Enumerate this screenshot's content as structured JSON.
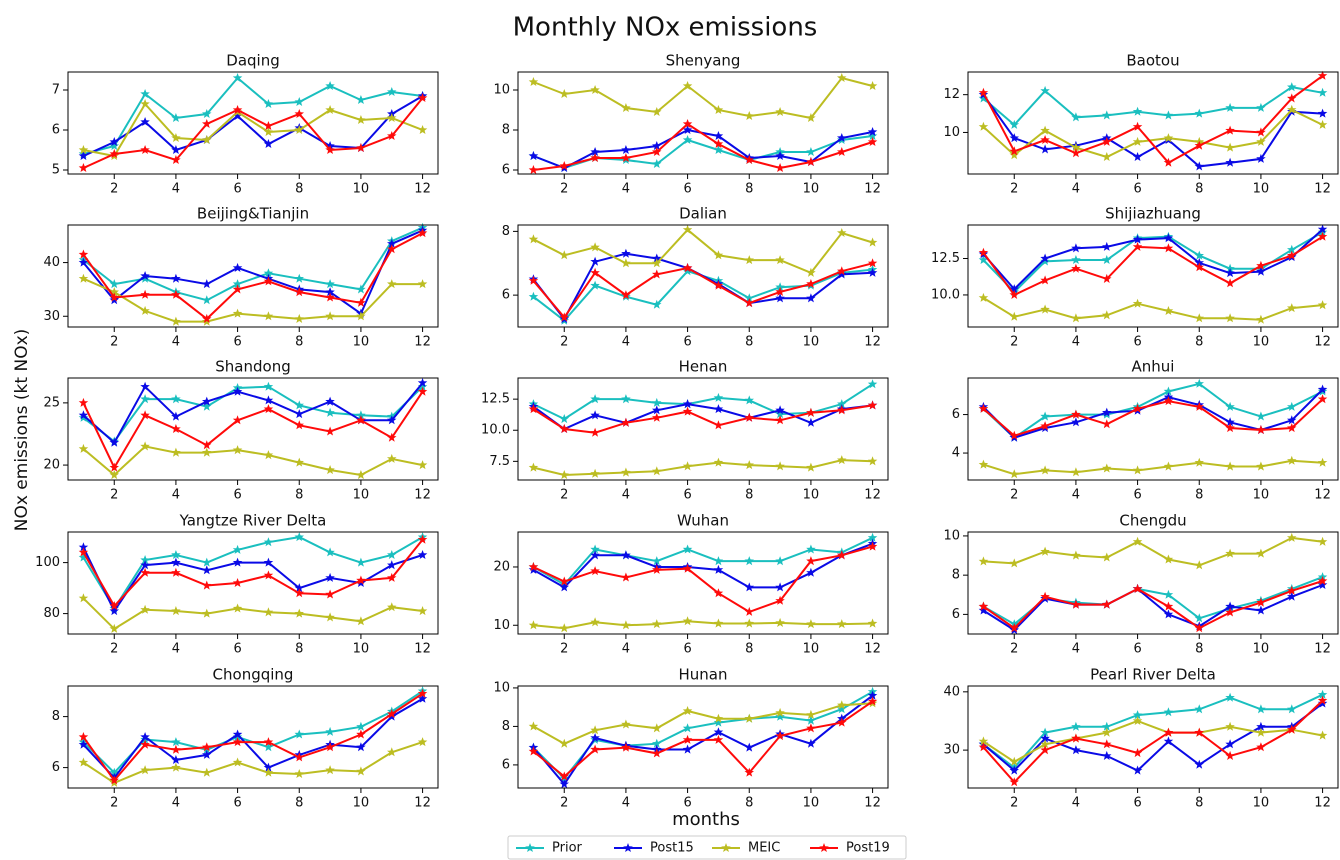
{
  "title": "Monthly NOx emissions",
  "xlabel": "months",
  "ylabel": "NOx emissions (kt NOx)",
  "x": [
    1,
    2,
    3,
    4,
    5,
    6,
    7,
    8,
    9,
    10,
    11,
    12
  ],
  "xlim": [
    0.5,
    12.5
  ],
  "xticks": [
    2,
    4,
    6,
    8,
    10,
    12
  ],
  "legend": [
    {
      "name": "Prior",
      "color": "#1abfbf"
    },
    {
      "name": "Post15",
      "color": "#0a0ae6"
    },
    {
      "name": "MEIC",
      "color": "#bcbd22"
    },
    {
      "name": "Post19",
      "color": "#ff0a0a"
    }
  ],
  "chart_data": [
    {
      "type": "line",
      "title": "Daqing",
      "ylim": [
        4.9,
        7.45
      ],
      "yticks": [
        5,
        6,
        7
      ],
      "series": [
        {
          "values": [
            5.4,
            5.6,
            6.9,
            6.3,
            6.4,
            7.3,
            6.65,
            6.7,
            7.1,
            6.75,
            6.95,
            6.85
          ]
        },
        {
          "values": [
            5.35,
            5.7,
            6.2,
            5.5,
            5.75,
            6.35,
            5.65,
            6.05,
            5.6,
            5.55,
            6.4,
            6.85
          ]
        },
        {
          "values": [
            5.5,
            5.35,
            6.65,
            5.8,
            5.75,
            6.45,
            5.95,
            6.0,
            6.5,
            6.25,
            6.3,
            6.0
          ]
        },
        {
          "values": [
            5.05,
            5.4,
            5.5,
            5.25,
            6.15,
            6.5,
            6.1,
            6.4,
            5.5,
            5.55,
            5.85,
            6.8
          ]
        }
      ]
    },
    {
      "type": "line",
      "title": "Shenyang",
      "ylim": [
        5.8,
        10.9
      ],
      "yticks": [
        6,
        8,
        10
      ],
      "series": [
        {
          "values": [
            6.7,
            6.1,
            6.6,
            6.5,
            6.3,
            7.5,
            7.0,
            6.5,
            6.9,
            6.9,
            7.5,
            7.7
          ]
        },
        {
          "values": [
            6.7,
            6.1,
            6.9,
            7.0,
            7.2,
            8.0,
            7.7,
            6.6,
            6.7,
            6.4,
            7.6,
            7.9
          ]
        },
        {
          "values": [
            10.4,
            9.8,
            10.0,
            9.1,
            8.9,
            10.2,
            9.0,
            8.7,
            8.9,
            8.6,
            10.6,
            10.2
          ]
        },
        {
          "values": [
            6.0,
            6.2,
            6.6,
            6.6,
            6.9,
            8.3,
            7.3,
            6.5,
            6.1,
            6.4,
            6.9,
            7.4
          ]
        }
      ]
    },
    {
      "type": "line",
      "title": "Baotou",
      "ylim": [
        7.8,
        13.2
      ],
      "yticks": [
        10,
        12
      ],
      "series": [
        {
          "values": [
            11.8,
            10.4,
            12.2,
            10.8,
            10.9,
            11.1,
            10.9,
            11.0,
            11.3,
            11.3,
            12.4,
            12.1
          ]
        },
        {
          "values": [
            12.0,
            9.7,
            9.1,
            9.3,
            9.7,
            8.7,
            9.6,
            8.2,
            8.4,
            8.6,
            11.1,
            11.0
          ]
        },
        {
          "values": [
            10.3,
            8.8,
            10.1,
            9.2,
            8.7,
            9.5,
            9.7,
            9.5,
            9.2,
            9.5,
            11.2,
            10.4
          ]
        },
        {
          "values": [
            12.1,
            9.0,
            9.6,
            8.9,
            9.5,
            10.3,
            8.4,
            9.3,
            10.1,
            10.0,
            11.8,
            13.0
          ]
        }
      ]
    },
    {
      "type": "line",
      "title": "Beijing&Tianjin",
      "ylim": [
        28,
        47
      ],
      "yticks": [
        30,
        40
      ],
      "series": [
        {
          "values": [
            40.5,
            36,
            37,
            34.5,
            33,
            36,
            38,
            37,
            36,
            35,
            44,
            46.5
          ]
        },
        {
          "values": [
            40,
            33,
            37.5,
            37,
            36,
            39,
            37,
            35,
            34.5,
            30.5,
            43.5,
            46
          ]
        },
        {
          "values": [
            37,
            34.5,
            31,
            29,
            29,
            30.5,
            30,
            29.5,
            30,
            30,
            36,
            36
          ]
        },
        {
          "values": [
            41.5,
            33.5,
            34,
            34,
            29.5,
            35,
            36.5,
            34.5,
            33.5,
            32.5,
            42.5,
            45.5
          ]
        }
      ]
    },
    {
      "type": "line",
      "title": "Dalian",
      "ylim": [
        5.0,
        8.2
      ],
      "yticks": [
        6,
        8
      ],
      "series": [
        {
          "values": [
            5.95,
            5.2,
            6.3,
            5.95,
            5.7,
            6.75,
            6.45,
            5.9,
            6.25,
            6.3,
            6.7,
            6.8
          ]
        },
        {
          "values": [
            6.5,
            5.25,
            7.05,
            7.3,
            7.15,
            6.85,
            6.35,
            5.75,
            5.9,
            5.9,
            6.65,
            6.7
          ]
        },
        {
          "values": [
            7.75,
            7.25,
            7.5,
            7.0,
            7.0,
            8.05,
            7.25,
            7.1,
            7.1,
            6.7,
            7.95,
            7.65
          ]
        },
        {
          "values": [
            6.45,
            5.3,
            6.7,
            6.0,
            6.65,
            6.85,
            6.3,
            5.75,
            6.1,
            6.35,
            6.75,
            7.0
          ]
        }
      ]
    },
    {
      "type": "line",
      "title": "Shijiazhuang",
      "ylim": [
        7.8,
        14.8
      ],
      "yticks": [
        {
          "value": 10,
          "label": "10.0"
        },
        {
          "value": 12.5,
          "label": "12.5"
        }
      ],
      "series": [
        {
          "values": [
            12.4,
            10.2,
            12.3,
            12.4,
            12.4,
            13.9,
            14.0,
            12.7,
            11.8,
            11.8,
            13.1,
            14.3
          ]
        },
        {
          "values": [
            12.8,
            10.4,
            12.5,
            13.2,
            13.3,
            13.8,
            13.9,
            12.2,
            11.5,
            11.6,
            12.6,
            14.5
          ]
        },
        {
          "values": [
            9.8,
            8.5,
            9.0,
            8.4,
            8.6,
            9.4,
            8.9,
            8.4,
            8.4,
            8.3,
            9.1,
            9.3
          ]
        },
        {
          "values": [
            12.9,
            10.0,
            11.0,
            11.8,
            11.1,
            13.3,
            13.2,
            11.9,
            10.8,
            12.0,
            12.7,
            14.0
          ]
        }
      ]
    },
    {
      "type": "line",
      "title": "Shandong",
      "ylim": [
        18.8,
        27
      ],
      "yticks": [
        20,
        25
      ],
      "series": [
        {
          "values": [
            23.8,
            21.9,
            25.3,
            25.3,
            24.7,
            26.2,
            26.3,
            24.8,
            24.2,
            24.0,
            23.9,
            26.3
          ]
        },
        {
          "values": [
            24.0,
            21.8,
            26.3,
            23.9,
            25.1,
            25.9,
            25.2,
            24.1,
            25.1,
            23.6,
            23.6,
            26.6
          ]
        },
        {
          "values": [
            21.3,
            19.2,
            21.5,
            21.0,
            21.0,
            21.2,
            20.8,
            20.2,
            19.6,
            19.2,
            20.5,
            20.0
          ]
        },
        {
          "values": [
            25.0,
            19.8,
            24.0,
            22.9,
            21.6,
            23.6,
            24.5,
            23.2,
            22.7,
            23.6,
            22.2,
            25.9
          ]
        }
      ]
    },
    {
      "type": "line",
      "title": "Henan",
      "ylim": [
        6.0,
        14.2
      ],
      "yticks": [
        7.5,
        {
          "value": 10,
          "label": "10.0"
        },
        12.5
      ],
      "series": [
        {
          "values": [
            12.1,
            10.9,
            12.5,
            12.5,
            12.2,
            12.1,
            12.6,
            12.4,
            11.3,
            11.4,
            12.1,
            13.7
          ]
        },
        {
          "values": [
            11.9,
            10.1,
            11.2,
            10.6,
            11.6,
            12.1,
            11.7,
            11.0,
            11.6,
            10.6,
            11.7,
            12.0
          ]
        },
        {
          "values": [
            7.0,
            6.4,
            6.5,
            6.6,
            6.7,
            7.1,
            7.4,
            7.2,
            7.1,
            7.0,
            7.6,
            7.5
          ]
        },
        {
          "values": [
            11.7,
            10.1,
            9.8,
            10.6,
            11.0,
            11.5,
            10.4,
            11.0,
            10.8,
            11.4,
            11.6,
            12.0
          ]
        }
      ]
    },
    {
      "type": "line",
      "title": "Anhui",
      "ylim": [
        2.6,
        7.9
      ],
      "yticks": [
        4,
        6
      ],
      "series": [
        {
          "values": [
            6.3,
            4.8,
            5.9,
            6.0,
            6.0,
            6.4,
            7.2,
            7.6,
            6.4,
            5.9,
            6.4,
            7.2
          ]
        },
        {
          "values": [
            6.4,
            4.8,
            5.3,
            5.6,
            6.1,
            6.2,
            6.9,
            6.5,
            5.6,
            5.2,
            5.7,
            7.3
          ]
        },
        {
          "values": [
            3.4,
            2.9,
            3.1,
            3.0,
            3.2,
            3.1,
            3.3,
            3.5,
            3.3,
            3.3,
            3.6,
            3.5
          ]
        },
        {
          "values": [
            6.3,
            4.9,
            5.4,
            6.0,
            5.5,
            6.3,
            6.7,
            6.4,
            5.3,
            5.2,
            5.3,
            6.8
          ]
        }
      ]
    },
    {
      "type": "line",
      "title": "Yangtze River Delta",
      "ylim": [
        72,
        112
      ],
      "yticks": [
        80,
        100
      ],
      "series": [
        {
          "values": [
            102,
            82,
            101,
            103,
            100,
            105,
            108,
            110,
            104,
            100,
            103,
            110
          ]
        },
        {
          "values": [
            106,
            81,
            99,
            100,
            97,
            100,
            100,
            90,
            94,
            92,
            99,
            103
          ]
        },
        {
          "values": [
            86,
            74,
            81.5,
            81,
            80,
            82,
            80.5,
            80,
            78.5,
            77,
            82.5,
            81
          ]
        },
        {
          "values": [
            104,
            83,
            96,
            96,
            91,
            92,
            95,
            88,
            87.5,
            93,
            94,
            109
          ]
        }
      ]
    },
    {
      "type": "line",
      "title": "Wuhan",
      "ylim": [
        8.5,
        26
      ],
      "yticks": [
        10,
        20
      ],
      "series": [
        {
          "values": [
            20,
            17,
            23,
            22,
            21,
            23,
            21,
            21,
            21,
            23,
            22.5,
            25
          ]
        },
        {
          "values": [
            19.5,
            16.5,
            22,
            22,
            20,
            20,
            19.5,
            16.5,
            16.5,
            19,
            22,
            24
          ]
        },
        {
          "values": [
            10,
            9.5,
            10.5,
            10,
            10.2,
            10.7,
            10.3,
            10.3,
            10.4,
            10.2,
            10.2,
            10.3
          ]
        },
        {
          "values": [
            20,
            17.5,
            19.3,
            18.2,
            19.5,
            19.7,
            15.5,
            12.3,
            14.2,
            21,
            22,
            23.5
          ]
        }
      ]
    },
    {
      "type": "line",
      "title": "Chengdu",
      "ylim": [
        5,
        10.2
      ],
      "yticks": [
        6,
        8,
        10
      ],
      "series": [
        {
          "values": [
            6.4,
            5.5,
            6.8,
            6.6,
            6.5,
            7.3,
            7.0,
            5.8,
            6.3,
            6.7,
            7.3,
            7.9
          ]
        },
        {
          "values": [
            6.2,
            5.2,
            6.8,
            6.5,
            6.5,
            7.3,
            6.0,
            5.4,
            6.4,
            6.2,
            6.9,
            7.5
          ]
        },
        {
          "values": [
            8.7,
            8.6,
            9.2,
            9.0,
            8.9,
            9.7,
            8.8,
            8.5,
            9.1,
            9.1,
            9.9,
            9.7
          ]
        },
        {
          "values": [
            6.4,
            5.3,
            6.9,
            6.5,
            6.5,
            7.3,
            6.4,
            5.3,
            6.1,
            6.6,
            7.2,
            7.7
          ]
        }
      ]
    },
    {
      "type": "line",
      "title": "Chongqing",
      "ylim": [
        5.2,
        9.2
      ],
      "yticks": [
        6,
        8
      ],
      "series": [
        {
          "values": [
            7.0,
            5.8,
            7.1,
            7.0,
            6.7,
            7.2,
            6.8,
            7.3,
            7.4,
            7.6,
            8.2,
            9.0
          ]
        },
        {
          "values": [
            6.9,
            5.6,
            7.2,
            6.3,
            6.5,
            7.3,
            6.0,
            6.5,
            6.9,
            6.8,
            8.0,
            8.7
          ]
        },
        {
          "values": [
            6.2,
            5.4,
            5.9,
            6.0,
            5.8,
            6.2,
            5.8,
            5.75,
            5.9,
            5.85,
            6.6,
            7.0
          ]
        },
        {
          "values": [
            7.2,
            5.5,
            6.9,
            6.7,
            6.8,
            7.0,
            7.0,
            6.4,
            6.8,
            7.3,
            8.1,
            8.9
          ]
        }
      ]
    },
    {
      "type": "line",
      "title": "Hunan",
      "ylim": [
        4.8,
        10.1
      ],
      "yticks": [
        6,
        8,
        10
      ],
      "series": [
        {
          "values": [
            6.9,
            5.3,
            7.3,
            7.0,
            7.1,
            7.9,
            8.2,
            8.4,
            8.5,
            8.3,
            8.9,
            9.8
          ]
        },
        {
          "values": [
            6.9,
            5.0,
            7.4,
            7.0,
            6.8,
            6.8,
            7.7,
            6.9,
            7.6,
            7.1,
            8.4,
            9.6
          ]
        },
        {
          "values": [
            8.0,
            7.1,
            7.8,
            8.1,
            7.9,
            8.8,
            8.4,
            8.4,
            8.7,
            8.6,
            9.1,
            9.2
          ]
        },
        {
          "values": [
            6.7,
            5.4,
            6.8,
            6.9,
            6.6,
            7.3,
            7.3,
            5.6,
            7.5,
            7.9,
            8.2,
            9.3
          ]
        }
      ]
    },
    {
      "type": "line",
      "title": "Pearl River Delta",
      "ylim": [
        23.5,
        41
      ],
      "yticks": [
        30,
        40
      ],
      "series": [
        {
          "values": [
            31,
            27,
            33,
            34,
            34,
            36,
            36.5,
            37,
            39,
            37,
            37,
            39.5
          ]
        },
        {
          "values": [
            31,
            26.5,
            32,
            30,
            29,
            26.5,
            31.5,
            27.5,
            31,
            34,
            34,
            38
          ]
        },
        {
          "values": [
            31.5,
            28,
            31,
            32,
            33,
            35,
            33,
            33,
            34,
            33,
            33.5,
            32.5
          ]
        },
        {
          "values": [
            30.5,
            24.5,
            30,
            32,
            31,
            29.5,
            33,
            33,
            29,
            30.5,
            33.5,
            38.5
          ]
        }
      ]
    }
  ]
}
